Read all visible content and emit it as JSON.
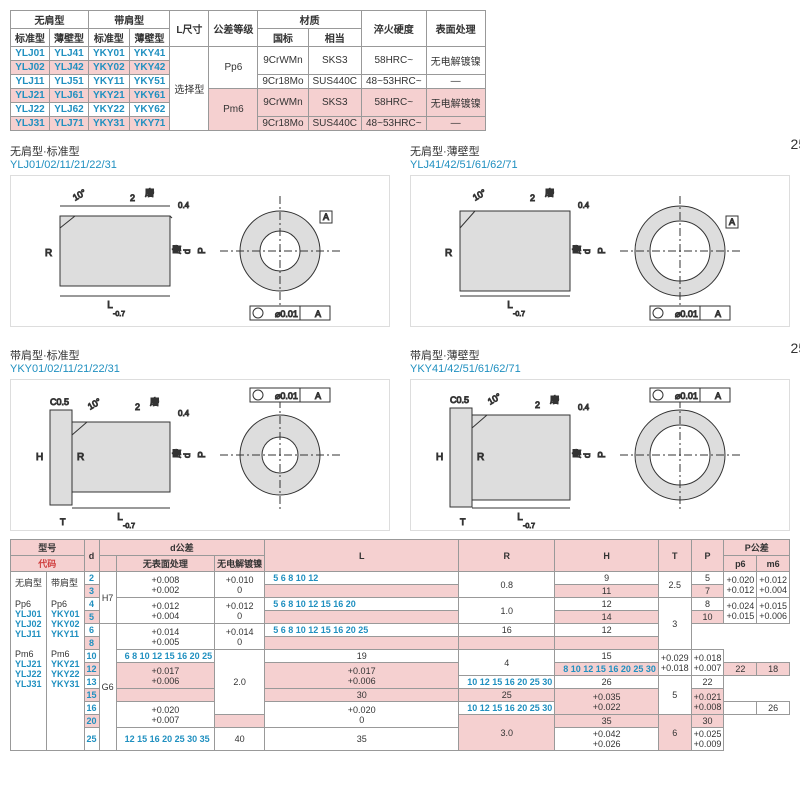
{
  "topTable": {
    "headers": {
      "c1": "无肩型",
      "c2": "带肩型",
      "c3": "L尺寸",
      "c4": "公差等级",
      "c5": "材质",
      "c5a": "国标",
      "c5b": "相当",
      "c6": "淬火硬度",
      "c7": "表面处理",
      "sub1": "标准型",
      "sub2": "薄壁型"
    },
    "rows": [
      {
        "a": "YLJ01",
        "b": "YLJ41",
        "c": "YKY01",
        "d": "YKY41",
        "tol": "Pp6",
        "m1": "9CrWMn",
        "m2": "SKS3",
        "h": "58HRC~",
        "s": "无电解镀镍",
        "pink": false
      },
      {
        "a": "YLJ02",
        "b": "YLJ42",
        "c": "YKY02",
        "d": "YKY42",
        "pink": true
      },
      {
        "a": "YLJ11",
        "b": "YLJ51",
        "c": "YKY11",
        "d": "YKY51",
        "m1": "9Cr18Mo",
        "m2": "SUS440C",
        "h": "48~53HRC~",
        "s": "—",
        "pink": false
      },
      {
        "a": "YLJ21",
        "b": "YLJ61",
        "c": "YKY21",
        "d": "YKY61",
        "sel": "选择型",
        "tol": "Pm6",
        "m1": "9CrWMn",
        "m2": "SKS3",
        "h": "58HRC~",
        "s": "无电解镀镍",
        "pink": true
      },
      {
        "a": "YLJ22",
        "b": "YLJ62",
        "c": "YKY22",
        "d": "YKY62",
        "pink": false
      },
      {
        "a": "YLJ31",
        "b": "YLJ71",
        "c": "YKY31",
        "d": "YKY71",
        "m1": "9Cr18Mo",
        "m2": "SUS440C",
        "h": "48~53HRC~",
        "s": "—",
        "pink": true
      }
    ]
  },
  "diagrams": [
    {
      "title": "无肩型·标准型",
      "sub": "YLJ01/02/11/21/22/31",
      "geom": "⌀0.01 | A"
    },
    {
      "title": "无肩型·薄壁型",
      "sub": "YLJ41/42/51/61/62/71",
      "geom": "⌀0.01 | A"
    },
    {
      "title": "带肩型·标准型",
      "sub": "YKY01/02/11/21/22/31",
      "geom": "⌀0.01 | A"
    },
    {
      "title": "带肩型·薄壁型",
      "sub": "YKY41/42/51/61/62/71",
      "geom": "⌀0.01 | A"
    }
  ],
  "dims": {
    "angle": "10°",
    "chamfer": "C0.5",
    "width": "2",
    "grind": "磨",
    "L": "L",
    "Lsub": "-0.7",
    "R": "R",
    "d": "d",
    "P": "P",
    "H": "H",
    "T": "T",
    "c": "0.4",
    "surf": "25/"
  },
  "bottomTable": {
    "headers": {
      "model": "型号",
      "code": "代码",
      "d": "d",
      "dtol": "d公差",
      "dt1": "无表面处理",
      "dt2": "无电解镀镍",
      "L": "L",
      "R": "R",
      "H": "H",
      "T": "T",
      "P": "P",
      "Ptol": "P公差",
      "p6": "p6",
      "m6": "m6",
      "shoulder": "无肩型",
      "flange": "带肩型",
      "Pp6": "Pp6",
      "Pm6": "Pm6"
    },
    "models": {
      "p": [
        "YLJ01",
        "YLJ02",
        "YLJ11"
      ],
      "m": [
        "YLJ21",
        "YLJ22",
        "YLJ31"
      ],
      "pk": [
        "YKY01",
        "YKY02",
        "YKY11"
      ],
      "mk": [
        "YKY21",
        "YKY22",
        "YKY31"
      ]
    },
    "rows": [
      {
        "d": "2",
        "t1": "+0.008 +0.002",
        "t2": "+0.010 0",
        "L": "5 6 8 10 12",
        "R": "0.8",
        "H": "9",
        "T": "2.5",
        "P": "5",
        "p6": "+0.020 +0.012",
        "m6": "+0.012 +0.004",
        "pink": false,
        "dtg": "H7"
      },
      {
        "d": "3",
        "L": "",
        "H": "11",
        "P": "7",
        "pink": true
      },
      {
        "d": "4",
        "t1": "+0.012 +0.004",
        "t2": "+0.012 0",
        "L": "5 6 8 10 12 15 16 20",
        "R": "1.0",
        "H": "12",
        "T": "3",
        "P": "8",
        "p6": "+0.024 +0.015",
        "m6": "+0.015 +0.006",
        "pink": false
      },
      {
        "d": "5",
        "H": "14",
        "P": "10",
        "pink": true
      },
      {
        "d": "6",
        "t1": "+0.014 +0.005",
        "t2": "+0.014 0",
        "L": "5 6 8 10 12 15 16 20 25",
        "H": "16",
        "P": "12",
        "pink": false,
        "dtg": "G6"
      },
      {
        "d": "8",
        "L": "",
        "pink": true
      },
      {
        "d": "10",
        "L": "6 8 10 12 15 16 20 25",
        "R": "2.0",
        "H": "19",
        "T": "4",
        "P": "15",
        "p6": "+0.029 +0.018",
        "m6": "+0.018 +0.007",
        "pink": false
      },
      {
        "d": "12",
        "t1": "+0.017 +0.006",
        "t2": "+0.017 +0.006",
        "L": "8 10 12 15 16 20 25 30",
        "H": "22",
        "P": "18",
        "pink": true,
        "dtg": "G6"
      },
      {
        "d": "13",
        "L": "10 12 15 16 20 25 30",
        "H": "26",
        "T": "5",
        "P": "22",
        "pink": false
      },
      {
        "d": "15",
        "L": "",
        "H": "30",
        "P": "25",
        "p6": "+0.035 +0.022",
        "m6": "+0.021 +0.008",
        "pink": true
      },
      {
        "d": "16",
        "t1": "+0.020 +0.007",
        "t2": "+0.020 0",
        "L": "10 12 15 16 20 25 30",
        "H": "",
        "P": "26",
        "pink": false
      },
      {
        "d": "20",
        "L": "",
        "R": "3.0",
        "H": "35",
        "T": "6",
        "P": "30",
        "pink": true
      },
      {
        "d": "25",
        "L": "12 15 16 20 25 30 35",
        "H": "40",
        "P": "35",
        "p6": "+0.042 +0.026",
        "m6": "+0.025 +0.009",
        "pink": false
      }
    ]
  }
}
